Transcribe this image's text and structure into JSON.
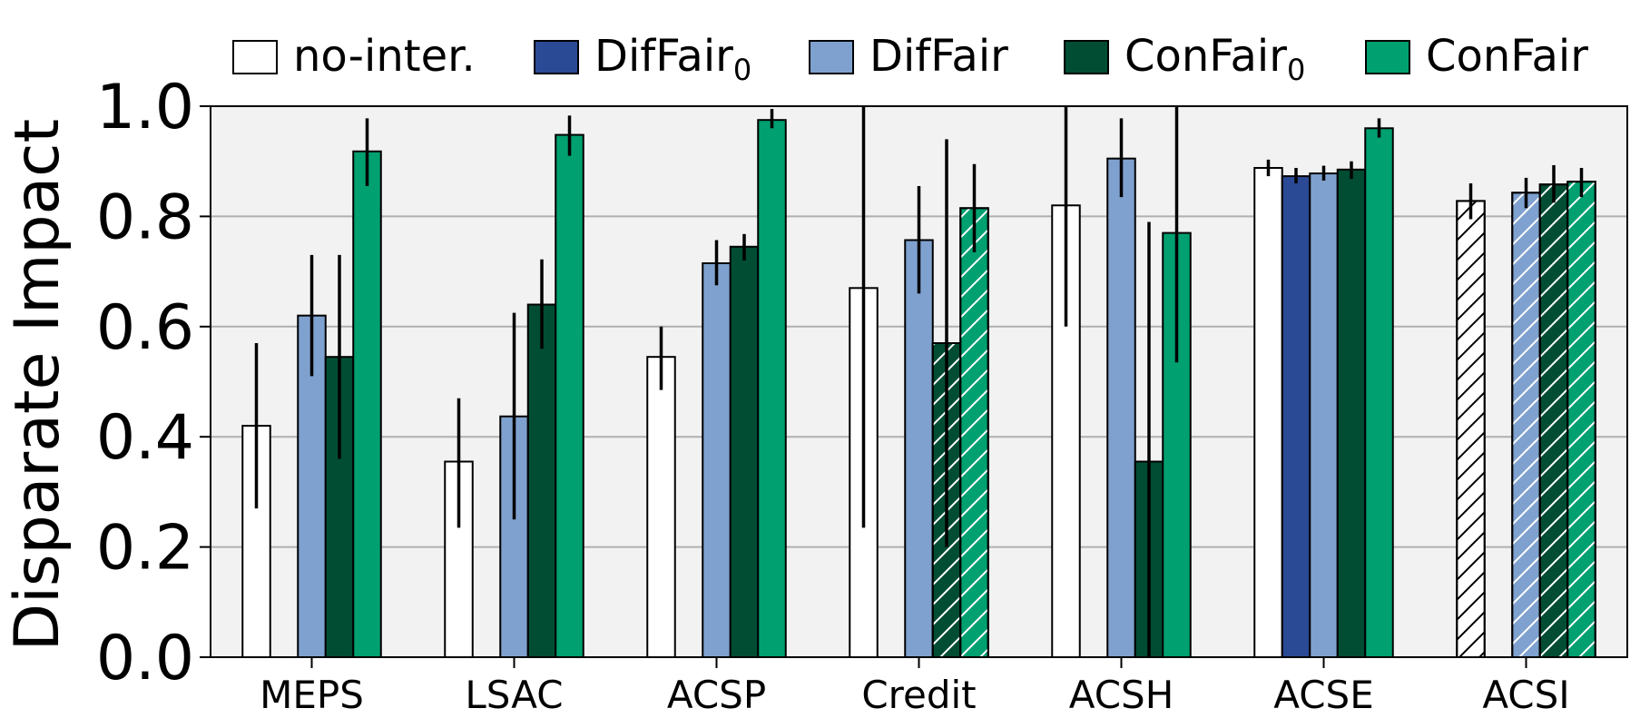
{
  "chart_data": {
    "type": "bar",
    "ylabel": "Disparate Impact",
    "ylim": [
      0,
      1.0
    ],
    "yticks": [
      "0.0",
      "0.2",
      "0.4",
      "0.6",
      "0.8",
      "1.0"
    ],
    "grid": "horizontal",
    "legend_placement": "top",
    "categories": [
      "MEPS",
      "LSAC",
      "ACSP",
      "Credit",
      "ACSH",
      "ACSE",
      "ACSI"
    ],
    "series": [
      {
        "name": "no-inter.",
        "legend_base": "no-inter.",
        "legend_sub": "",
        "color": "#ffffff",
        "values": [
          0.42,
          0.355,
          0.545,
          0.67,
          0.82,
          0.888,
          0.828
        ],
        "err_low": [
          0.27,
          0.235,
          0.485,
          0.235,
          0.6,
          0.873,
          0.795
        ],
        "err_high": [
          0.57,
          0.47,
          0.6,
          1.0,
          1.0,
          0.903,
          0.86
        ],
        "hatched": [
          false,
          false,
          false,
          false,
          false,
          false,
          true
        ]
      },
      {
        "name": "DifFair0",
        "legend_base": "DifFair",
        "legend_sub": "0",
        "color": "#2b4a96",
        "values": [
          null,
          null,
          null,
          null,
          null,
          0.873,
          null
        ],
        "err_low": [
          null,
          null,
          null,
          null,
          null,
          0.86,
          null
        ],
        "err_high": [
          null,
          null,
          null,
          null,
          null,
          0.888,
          null
        ],
        "hatched": [
          false,
          false,
          false,
          false,
          false,
          false,
          false
        ]
      },
      {
        "name": "DifFair",
        "legend_base": "DifFair",
        "legend_sub": "",
        "color": "#7fa1cf",
        "values": [
          0.62,
          0.437,
          0.715,
          0.757,
          0.905,
          0.878,
          0.843
        ],
        "err_low": [
          0.51,
          0.25,
          0.675,
          0.66,
          0.835,
          0.865,
          0.815
        ],
        "err_high": [
          0.73,
          0.625,
          0.757,
          0.855,
          0.978,
          0.892,
          0.87
        ],
        "hatched": [
          false,
          false,
          false,
          false,
          false,
          false,
          true
        ]
      },
      {
        "name": "ConFair0",
        "legend_base": "ConFair",
        "legend_sub": "0",
        "color": "#004d33",
        "values": [
          0.545,
          0.64,
          0.745,
          0.57,
          0.355,
          0.885,
          0.858
        ],
        "err_low": [
          0.36,
          0.56,
          0.72,
          0.2,
          0.0,
          0.868,
          0.825
        ],
        "err_high": [
          0.73,
          0.722,
          0.768,
          0.94,
          0.79,
          0.9,
          0.893
        ],
        "hatched": [
          false,
          false,
          false,
          true,
          false,
          false,
          true
        ]
      },
      {
        "name": "ConFair",
        "legend_base": "ConFair",
        "legend_sub": "",
        "color": "#00a070",
        "values": [
          0.918,
          0.948,
          0.975,
          0.815,
          0.77,
          0.96,
          0.863
        ],
        "err_low": [
          0.855,
          0.91,
          0.96,
          0.735,
          0.535,
          0.943,
          0.835
        ],
        "err_high": [
          0.978,
          0.983,
          0.995,
          0.895,
          1.0,
          0.978,
          0.888
        ],
        "hatched": [
          false,
          false,
          false,
          true,
          false,
          false,
          true
        ]
      }
    ]
  }
}
